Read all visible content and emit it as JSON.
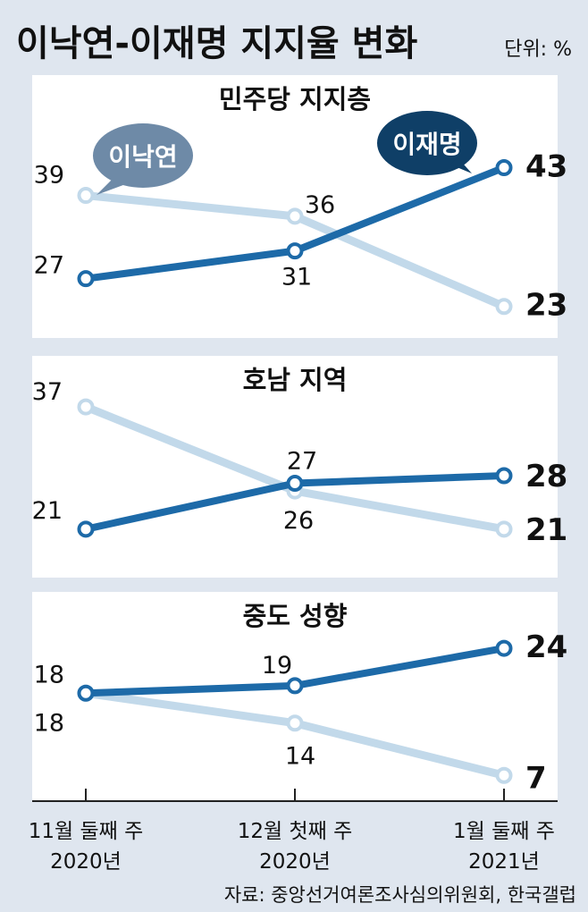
{
  "title": "이낙연-이재명 지지율 변화",
  "unit": "단위: %",
  "source": "자료: 중앙선거여론조사심의위원회, 한국갤럽",
  "colors": {
    "lee_nakyon": "#c2d9ea",
    "lee_jaemyung": "#1d6aa8",
    "bubble_nakyon": "#6e8aa7",
    "bubble_jaemyung": "#0f3f67"
  },
  "chart_data": {
    "type": "line",
    "categories": [
      [
        "11월 둘째 주",
        "2020년"
      ],
      [
        "12월 첫째 주",
        "2020년"
      ],
      [
        "1월 둘째 주",
        "2021년"
      ]
    ],
    "bubble_labels": {
      "lee_nakyon": "이낙연",
      "lee_jaemyung": "이재명"
    },
    "panels": [
      {
        "title": "민주당 지지층",
        "series": [
          {
            "key": "lee_nakyon",
            "values": [
              39,
              36,
              23
            ]
          },
          {
            "key": "lee_jaemyung",
            "values": [
              27,
              31,
              43
            ]
          }
        ]
      },
      {
        "title": "호남 지역",
        "series": [
          {
            "key": "lee_nakyon",
            "values": [
              37,
              26,
              21
            ]
          },
          {
            "key": "lee_jaemyung",
            "values": [
              21,
              27,
              28
            ]
          }
        ]
      },
      {
        "title": "중도 성향",
        "series": [
          {
            "key": "lee_nakyon",
            "values": [
              18,
              14,
              7
            ]
          },
          {
            "key": "lee_jaemyung",
            "values": [
              18,
              19,
              24
            ]
          }
        ]
      }
    ]
  }
}
